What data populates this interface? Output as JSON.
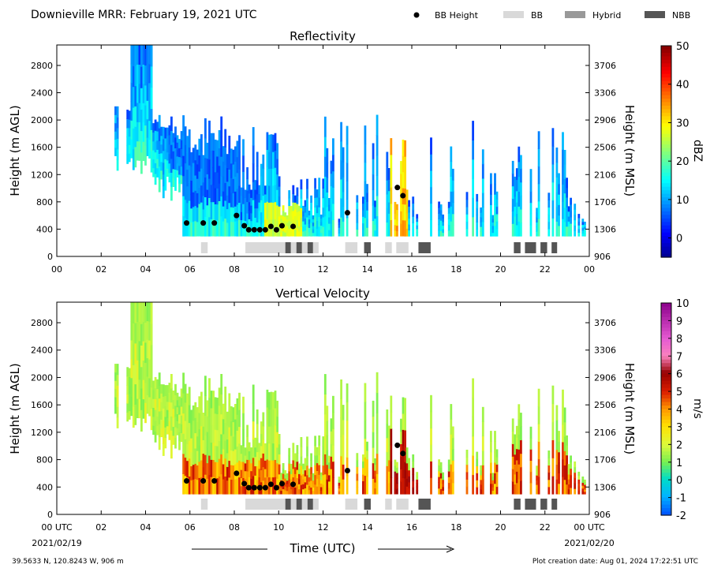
{
  "header": {
    "title": "Downieville MRR:  February 19, 2021 UTC",
    "legend": [
      {
        "label": "BB Height",
        "kind": "dot",
        "color": "#000000"
      },
      {
        "label": "BB",
        "kind": "swatch",
        "color": "#d9d9d9"
      },
      {
        "label": "Hybrid",
        "kind": "swatch",
        "color": "#999999"
      },
      {
        "label": "NBB",
        "kind": "swatch",
        "color": "#555555"
      }
    ]
  },
  "footer": {
    "location": "39.5633 N, 120.8243 W, 906 m",
    "creation": "Plot creation date: Aug 01, 2024 17:22:51 UTC",
    "xlabel": "Time (UTC)",
    "start_date": "2021/02/19",
    "end_date": "2021/02/20"
  },
  "chart_data": [
    {
      "type": "heatmap",
      "title": "Reflectivity",
      "ylabel": "Height (m AGL)",
      "y2label": "Height (m MSL)",
      "colorbar_label": "dBZ",
      "xlim": [
        0,
        24
      ],
      "ylim": [
        0,
        3100
      ],
      "x_ticks": [
        "00",
        "02",
        "04",
        "06",
        "08",
        "10",
        "12",
        "14",
        "16",
        "18",
        "20",
        "22",
        "00"
      ],
      "y_ticks": [
        0,
        400,
        800,
        1200,
        1600,
        2000,
        2400,
        2800
      ],
      "y2_ticks": [
        906,
        1306,
        1706,
        2106,
        2506,
        2906,
        3306,
        3706
      ],
      "colorbar": {
        "min": -5,
        "max": 50,
        "ticks": [
          0,
          10,
          20,
          30,
          40,
          50
        ],
        "colormap": "jet"
      },
      "bb_height": [
        {
          "time": 5.85,
          "height": 490
        },
        {
          "time": 6.6,
          "height": 490
        },
        {
          "time": 7.1,
          "height": 490
        },
        {
          "time": 8.1,
          "height": 600
        },
        {
          "time": 8.45,
          "height": 450
        },
        {
          "time": 8.65,
          "height": 390
        },
        {
          "time": 8.9,
          "height": 390
        },
        {
          "time": 9.15,
          "height": 390
        },
        {
          "time": 9.4,
          "height": 390
        },
        {
          "time": 9.65,
          "height": 440
        },
        {
          "time": 9.9,
          "height": 390
        },
        {
          "time": 10.15,
          "height": 450
        },
        {
          "time": 10.65,
          "height": 440
        },
        {
          "time": 13.1,
          "height": 640
        },
        {
          "time": 15.35,
          "height": 1010
        },
        {
          "time": 15.6,
          "height": 890
        }
      ],
      "bb_type_segments": [
        {
          "start": 6.5,
          "end": 6.8,
          "type": "BB"
        },
        {
          "start": 8.5,
          "end": 10.3,
          "type": "BB"
        },
        {
          "start": 10.3,
          "end": 10.55,
          "type": "NBB"
        },
        {
          "start": 10.55,
          "end": 10.8,
          "type": "BB"
        },
        {
          "start": 10.8,
          "end": 11.05,
          "type": "NBB"
        },
        {
          "start": 11.05,
          "end": 11.3,
          "type": "BB"
        },
        {
          "start": 11.3,
          "end": 11.55,
          "type": "NBB"
        },
        {
          "start": 11.55,
          "end": 11.8,
          "type": "BB"
        },
        {
          "start": 13.0,
          "end": 13.55,
          "type": "BB"
        },
        {
          "start": 13.85,
          "end": 14.15,
          "type": "NBB"
        },
        {
          "start": 14.8,
          "end": 15.1,
          "type": "BB"
        },
        {
          "start": 15.3,
          "end": 15.85,
          "type": "BB"
        },
        {
          "start": 16.3,
          "end": 16.85,
          "type": "NBB"
        },
        {
          "start": 20.6,
          "end": 20.9,
          "type": "NBB"
        },
        {
          "start": 21.1,
          "end": 21.6,
          "type": "NBB"
        },
        {
          "start": 21.8,
          "end": 22.1,
          "type": "NBB"
        },
        {
          "start": 22.3,
          "end": 22.55,
          "type": "NBB"
        }
      ]
    },
    {
      "type": "heatmap",
      "title": "Vertical Velocity",
      "ylabel": "Height (m AGL)",
      "y2label": "Height (m MSL)",
      "colorbar_label": "m/s",
      "xlim": [
        0,
        24
      ],
      "ylim": [
        0,
        3100
      ],
      "x_ticks": [
        "00 UTC",
        "02",
        "04",
        "06",
        "08",
        "10",
        "12",
        "14",
        "16",
        "18",
        "20",
        "22",
        "00 UTC"
      ],
      "y_ticks": [
        0,
        400,
        800,
        1200,
        1600,
        2000,
        2400,
        2800
      ],
      "y2_ticks": [
        906,
        1306,
        1706,
        2106,
        2506,
        2906,
        3306,
        3706
      ],
      "colorbar": {
        "min": -2,
        "max": 10,
        "ticks": [
          -2,
          -1,
          0,
          1,
          2,
          3,
          4,
          5,
          6,
          7,
          8,
          9,
          10
        ],
        "colormap": "velocity"
      },
      "bb_height": [
        {
          "time": 5.85,
          "height": 490
        },
        {
          "time": 6.6,
          "height": 490
        },
        {
          "time": 7.1,
          "height": 490
        },
        {
          "time": 8.1,
          "height": 600
        },
        {
          "time": 8.45,
          "height": 450
        },
        {
          "time": 8.65,
          "height": 390
        },
        {
          "time": 8.9,
          "height": 390
        },
        {
          "time": 9.15,
          "height": 390
        },
        {
          "time": 9.4,
          "height": 390
        },
        {
          "time": 9.65,
          "height": 440
        },
        {
          "time": 9.9,
          "height": 390
        },
        {
          "time": 10.15,
          "height": 450
        },
        {
          "time": 10.65,
          "height": 440
        },
        {
          "time": 13.1,
          "height": 640
        },
        {
          "time": 15.35,
          "height": 1010
        },
        {
          "time": 15.6,
          "height": 890
        }
      ],
      "bb_type_segments": [
        {
          "start": 6.5,
          "end": 6.8,
          "type": "BB"
        },
        {
          "start": 8.5,
          "end": 10.3,
          "type": "BB"
        },
        {
          "start": 10.3,
          "end": 10.55,
          "type": "NBB"
        },
        {
          "start": 10.55,
          "end": 10.8,
          "type": "BB"
        },
        {
          "start": 10.8,
          "end": 11.05,
          "type": "NBB"
        },
        {
          "start": 11.05,
          "end": 11.3,
          "type": "BB"
        },
        {
          "start": 11.3,
          "end": 11.55,
          "type": "NBB"
        },
        {
          "start": 11.55,
          "end": 11.8,
          "type": "BB"
        },
        {
          "start": 13.0,
          "end": 13.55,
          "type": "BB"
        },
        {
          "start": 13.85,
          "end": 14.15,
          "type": "NBB"
        },
        {
          "start": 14.8,
          "end": 15.1,
          "type": "BB"
        },
        {
          "start": 15.3,
          "end": 15.85,
          "type": "BB"
        },
        {
          "start": 16.3,
          "end": 16.85,
          "type": "NBB"
        },
        {
          "start": 20.6,
          "end": 20.9,
          "type": "NBB"
        },
        {
          "start": 21.1,
          "end": 21.6,
          "type": "NBB"
        },
        {
          "start": 21.8,
          "end": 22.1,
          "type": "NBB"
        },
        {
          "start": 22.3,
          "end": 22.55,
          "type": "NBB"
        }
      ]
    }
  ]
}
